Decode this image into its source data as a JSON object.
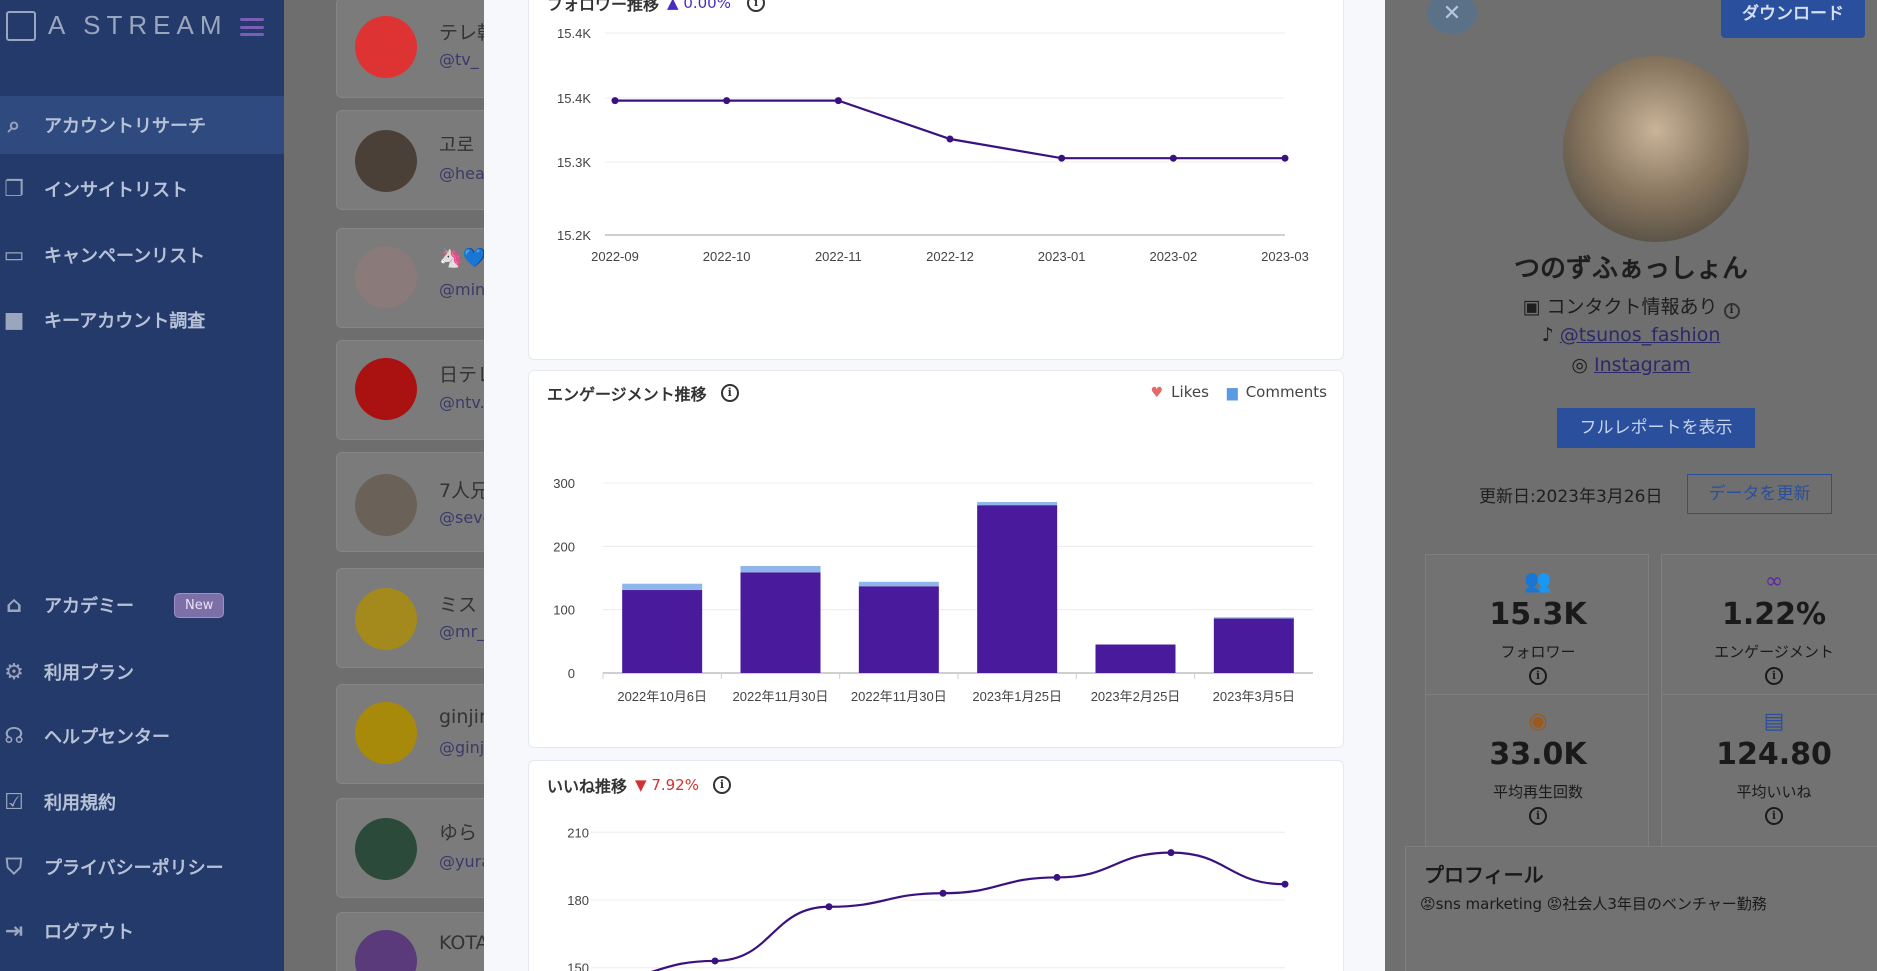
{
  "app": {
    "logo_text": "A STREAM"
  },
  "sidebar": {
    "items": [
      {
        "label": "アカウントリサーチ",
        "icon": "search-icon",
        "active": true
      },
      {
        "label": "インサイトリスト",
        "icon": "bookmark-icon"
      },
      {
        "label": "キャンペーンリスト",
        "icon": "card-icon"
      },
      {
        "label": "キーアカウント調査",
        "icon": "video-icon"
      },
      {
        "label": "アカデミー",
        "icon": "graduation-cap-icon",
        "badge": "New"
      },
      {
        "label": "利用プラン",
        "icon": "gear-icon"
      },
      {
        "label": "ヘルプセンター",
        "icon": "headset-icon"
      },
      {
        "label": "利用規約",
        "icon": "checkbox-icon"
      },
      {
        "label": "プライバシーポリシー",
        "icon": "shield-icon"
      },
      {
        "label": "ログアウト",
        "icon": "logout-icon"
      }
    ]
  },
  "list": {
    "accounts": [
      {
        "name": "テレ朝",
        "handle": "@tv_"
      },
      {
        "name": "고로",
        "handle": "@hea"
      },
      {
        "name": "🦄💙",
        "handle": "@min"
      },
      {
        "name": "日テレ",
        "handle": "@ntv."
      },
      {
        "name": "7人兄",
        "handle": "@seve"
      },
      {
        "name": "ミス",
        "handle": "@mr_"
      },
      {
        "name": "ginjin",
        "handle": "@ginj"
      },
      {
        "name": "ゆら",
        "handle": "@yura"
      },
      {
        "name": "KOTA",
        "handle": ""
      }
    ]
  },
  "follower_chart": {
    "title": "フォロワー推移",
    "delta": "0.00%"
  },
  "engagement_chart": {
    "title": "エンゲージメント推移",
    "legend_likes": "Likes",
    "legend_comments": "Comments"
  },
  "likes_chart": {
    "title": "いいね推移",
    "delta": "7.92%"
  },
  "chart_data": [
    {
      "type": "line",
      "title": "フォロワー推移",
      "x": [
        "2022-09",
        "2022-10",
        "2022-11",
        "2022-12",
        "2023-01",
        "2023-02",
        "2023-03"
      ],
      "series": [
        {
          "values": [
            15370,
            15370,
            15370,
            15330,
            15310,
            15310,
            15310
          ]
        }
      ],
      "yticks": [
        "15.2K",
        "15.3K",
        "15.4K",
        "15.4K"
      ],
      "ylim": [
        15230,
        15430
      ]
    },
    {
      "type": "bar",
      "title": "エンゲージメント推移",
      "categories": [
        "2022年10月6日",
        "2022年11月30日",
        "2022年11月30日",
        "2023年1月25日",
        "2023年2月25日",
        "2023年3月5日"
      ],
      "series": [
        {
          "name": "Likes",
          "values": [
            131,
            159,
            137,
            265,
            45,
            86
          ],
          "color": "#4a1a9c"
        },
        {
          "name": "Comments",
          "values": [
            10,
            10,
            7,
            5,
            0,
            2
          ],
          "color": "#8fb6ea"
        }
      ],
      "yticks": [
        "0",
        "100",
        "200",
        "300"
      ],
      "ylim": [
        0,
        300
      ]
    },
    {
      "type": "line",
      "title": "いいね推移",
      "series": [
        {
          "values": [
            145,
            153,
            177,
            183,
            190,
            201,
            187
          ]
        }
      ],
      "yticks": [
        "150",
        "180",
        "210"
      ],
      "ylim": [
        145,
        215
      ]
    }
  ],
  "profile": {
    "name": "つのずふぁっしょん",
    "contact": "コンタクト情報あり",
    "tiktok": "@tsunos_fashion",
    "instagram": "Instagram",
    "close": "✕",
    "download": "ダウンロード",
    "report_button": "フルレポートを表示",
    "updated": "更新日:2023年3月26日",
    "refresh_button": "データを更新",
    "stats": [
      {
        "value": "15.3K",
        "label": "フォロワー",
        "icon": "people-icon"
      },
      {
        "value": "1.22%",
        "label": "エンゲージメント",
        "icon": "infinity-icon"
      },
      {
        "value": "33.0K",
        "label": "平均再生回数",
        "icon": "eye-icon"
      },
      {
        "value": "124.80",
        "label": "平均いいね",
        "icon": "comment-icon"
      }
    ],
    "section_title": "プロフィール",
    "tags": "😡sns marketing 😡社会人3年目のベンチャー勤務"
  },
  "colors": {
    "sidebar_bg": "#233a6b",
    "chart_line": "#3a1280",
    "likes_bar": "#4a1a9c",
    "comments_bar": "#8fb6ea",
    "accent_blue": "#2a4f9c"
  }
}
